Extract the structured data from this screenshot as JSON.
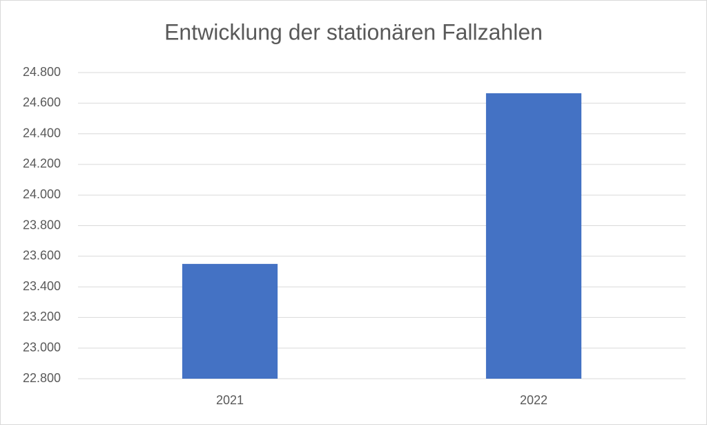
{
  "chart_data": {
    "type": "bar",
    "title": "Entwicklung der stationären Fallzahlen",
    "categories": [
      "2021",
      "2022"
    ],
    "values": [
      23550,
      24665
    ],
    "color": "#4472c4",
    "ylim": [
      22800,
      24800
    ],
    "yticks": [
      {
        "value": 22800,
        "label": "22.800"
      },
      {
        "value": 23000,
        "label": "23.000"
      },
      {
        "value": 23200,
        "label": "23.200"
      },
      {
        "value": 23400,
        "label": "23.400"
      },
      {
        "value": 23600,
        "label": "23.600"
      },
      {
        "value": 23800,
        "label": "23.800"
      },
      {
        "value": 24000,
        "label": "24.000"
      },
      {
        "value": 24200,
        "label": "24.200"
      },
      {
        "value": 24400,
        "label": "24.400"
      },
      {
        "value": 24600,
        "label": "24.600"
      },
      {
        "value": 24800,
        "label": "24.800"
      }
    ],
    "grid": true
  }
}
